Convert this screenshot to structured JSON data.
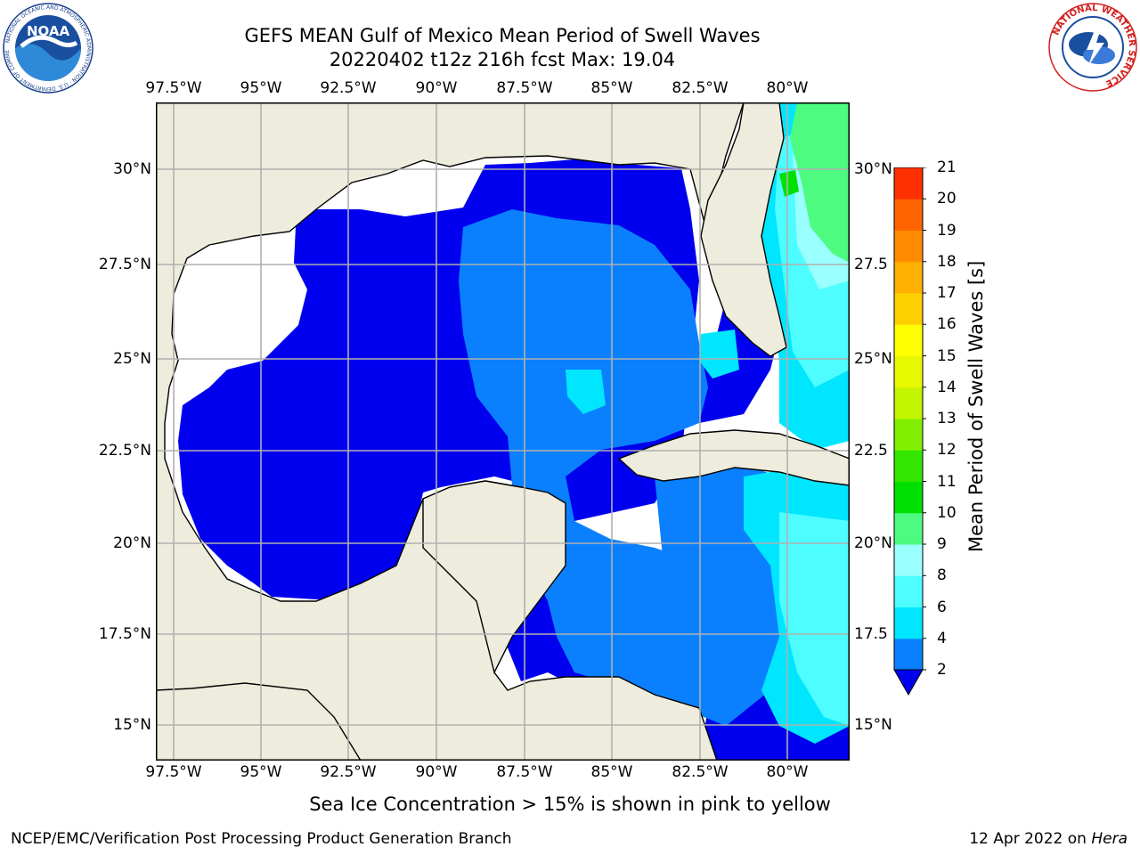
{
  "header": {
    "title_line1": "GEFS MEAN Gulf of Mexico Mean Period of Swell Waves",
    "title_line2": "20220402 t12z 216h fcst   Max: 19.04"
  },
  "logos": {
    "left": "NOAA logo",
    "left_text": "NOAA",
    "left_ring_text": "NATIONAL OCEANIC AND ATMOSPHERIC ADMINISTRATION · U.S. DEPARTMENT OF COMMERCE",
    "right": "National Weather Service logo",
    "right_ring_text": "NATIONAL WEATHER SERVICE"
  },
  "map": {
    "lon_ticks": [
      "97.5°W",
      "95°W",
      "92.5°W",
      "90°W",
      "87.5°W",
      "85°W",
      "82.5°W",
      "80°W"
    ],
    "lat_ticks_left": [
      "30°N",
      "27.5°N",
      "25°N",
      "22.5°N",
      "20°N",
      "17.5°N",
      "15°N"
    ],
    "lat_ticks_right": [
      "30°N",
      "27.5",
      "25°N",
      "22.5",
      "20°N",
      "17.5",
      "15°N"
    ],
    "extent": {
      "lon_min": -98.0,
      "lon_max": -78.2,
      "lat_min": 14.0,
      "lat_max": 31.6
    },
    "colors": {
      "land": "#eeecdc",
      "no_data": "#ffffff",
      "grid": "#b0b0b0"
    }
  },
  "colorbar": {
    "label": "Mean Period of Swell Waves [s]",
    "ticks": [
      "2",
      "4",
      "6",
      "8",
      "9",
      "10",
      "11",
      "12",
      "13",
      "14",
      "15",
      "16",
      "17",
      "18",
      "19",
      "20",
      "21"
    ],
    "levels": [
      2,
      4,
      6,
      8,
      9,
      10,
      11,
      12,
      13,
      14,
      15,
      16,
      17,
      18,
      19,
      20,
      21
    ],
    "colors": [
      "#0a80ff",
      "#00e6ff",
      "#4dfdff",
      "#99ffff",
      "#4dfb80",
      "#00e000",
      "#33e600",
      "#80f000",
      "#c3f400",
      "#e8f800",
      "#ffff00",
      "#ffd000",
      "#ffb000",
      "#ff8c00",
      "#ff6400",
      "#ff3000",
      "#ff0000"
    ],
    "under_color": "#0000ee"
  },
  "note": "Sea Ice Concentration > 15% is shown in pink to yellow",
  "footer": {
    "left": "NCEP/EMC/Verification Post Processing Product Generation Branch",
    "right_date": "12 Apr 2022 on ",
    "right_host": "Hera"
  }
}
